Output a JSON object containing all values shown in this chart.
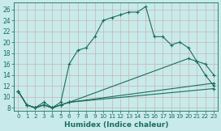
{
  "xlabel": "Humidex (Indice chaleur)",
  "bg_color": "#c8eaea",
  "line_color": "#1a6e5e",
  "grid_color": "#c8b4b4",
  "xlim": [
    -0.5,
    23.5
  ],
  "ylim": [
    7.5,
    27.2
  ],
  "xticks": [
    0,
    1,
    2,
    3,
    4,
    5,
    6,
    7,
    8,
    9,
    10,
    11,
    12,
    13,
    14,
    15,
    16,
    17,
    18,
    19,
    20,
    21,
    22,
    23
  ],
  "yticks": [
    8,
    10,
    12,
    14,
    16,
    18,
    20,
    22,
    24,
    26
  ],
  "line1_x": [
    0,
    1,
    2,
    3,
    4,
    5,
    6,
    7,
    8,
    9,
    10,
    11,
    12,
    13,
    14,
    15,
    16,
    17,
    18,
    19,
    20,
    21,
    22,
    23
  ],
  "line1_y": [
    11,
    8.5,
    8,
    9,
    8,
    9,
    16,
    18.5,
    19,
    21,
    24,
    24.5,
    25,
    25.5,
    25.5,
    26.5,
    21,
    21,
    19.5,
    20,
    19,
    16.5,
    14,
    12
  ],
  "line2_x": [
    0,
    1,
    2,
    3,
    4,
    5,
    6,
    23
  ],
  "line2_y": [
    11,
    8.5,
    8,
    8.5,
    8,
    8.5,
    9,
    12.5
  ],
  "line3_x": [
    0,
    1,
    2,
    3,
    4,
    5,
    6,
    20,
    21,
    22,
    23
  ],
  "line3_y": [
    11,
    8.5,
    8,
    8.5,
    8,
    8.5,
    9,
    17,
    16.5,
    16,
    14
  ],
  "line4_x": [
    0,
    1,
    2,
    3,
    4,
    5,
    6,
    23
  ],
  "line4_y": [
    11,
    8.5,
    8,
    8.5,
    8,
    8.5,
    9,
    11.5
  ],
  "marker": "+"
}
